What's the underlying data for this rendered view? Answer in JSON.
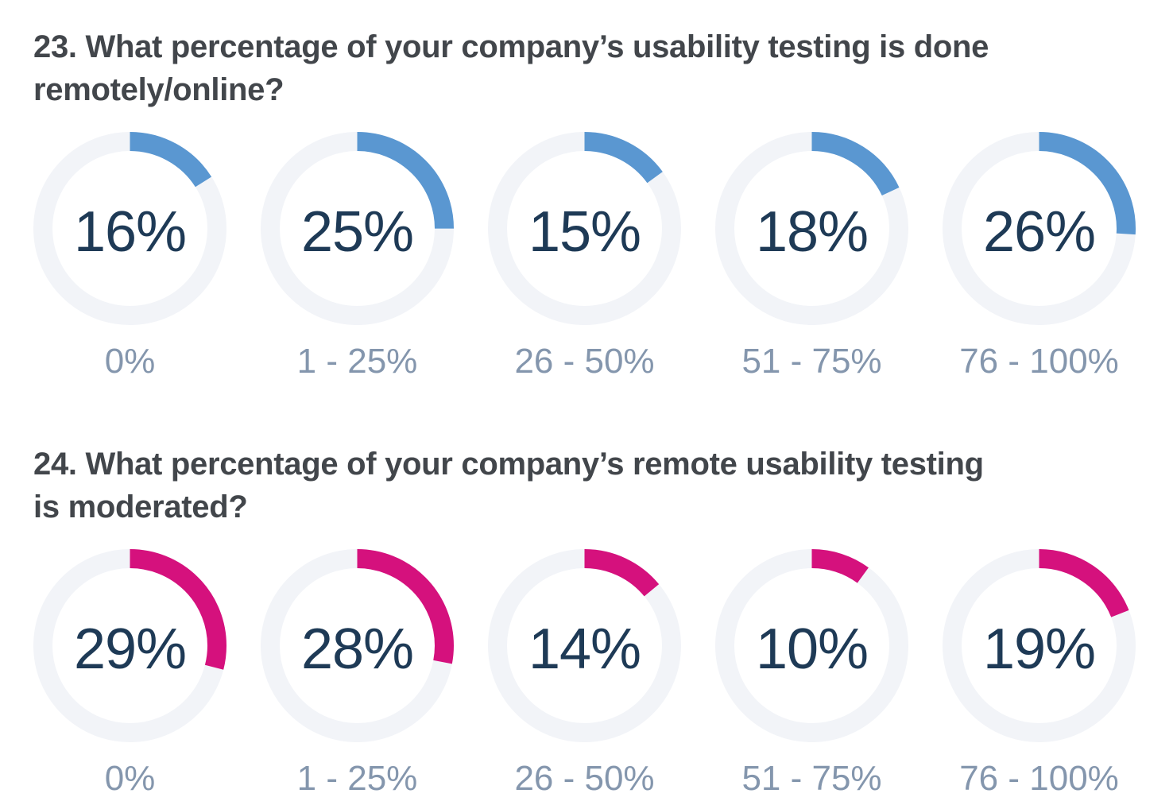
{
  "styles": {
    "background": "#ffffff",
    "title_color": "#42464b",
    "value_color": "#1e3a56",
    "label_color": "#8496ad"
  },
  "chart_data": [
    {
      "type": "donut",
      "title": "23. What percentage of your company’s usability testing is done\nremotely/online?",
      "categories": [
        "0%",
        "1 - 25%",
        "26 - 50%",
        "51 - 75%",
        "76 - 100%"
      ],
      "values": [
        16,
        25,
        15,
        18,
        26
      ],
      "value_labels": [
        "16%",
        "25%",
        "15%",
        "18%",
        "26%"
      ],
      "unit": "%",
      "arc_color": "#5a97d1",
      "track_color": "#f2f4f8",
      "start_angle_deg": 0,
      "direction": "clockwise",
      "value_range": [
        0,
        100
      ],
      "legend_position": "below-each",
      "grid": false
    },
    {
      "type": "donut",
      "title": "24. What percentage of your company’s remote usability testing\nis moderated?",
      "categories": [
        "0%",
        "1 - 25%",
        "26 - 50%",
        "51 - 75%",
        "76 - 100%"
      ],
      "values": [
        29,
        28,
        14,
        10,
        19
      ],
      "value_labels": [
        "29%",
        "28%",
        "14%",
        "10%",
        "19%"
      ],
      "unit": "%",
      "arc_color": "#d5117d",
      "track_color": "#f2f4f8",
      "start_angle_deg": 0,
      "direction": "clockwise",
      "value_range": [
        0,
        100
      ],
      "legend_position": "below-each",
      "grid": false
    }
  ]
}
